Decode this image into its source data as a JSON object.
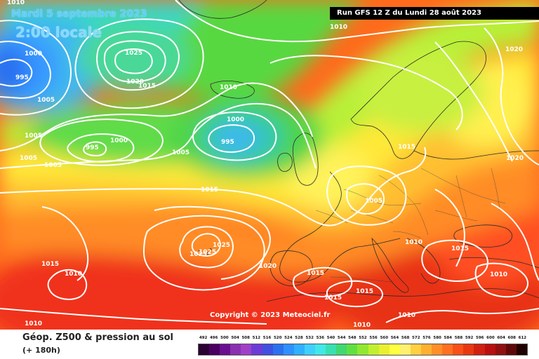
{
  "header": {
    "date": "Mardi 5 septembre 2023",
    "local_time": "2:00 locale",
    "run": "Run GFS 12 Z du Lundi 28 août 2023"
  },
  "copyright": "Copyright © 2023 Meteociel.fr",
  "legend": {
    "parameter": "Géop. Z500 & pression au sol",
    "lead_time": "(+ 180h)",
    "ticks": [
      "492",
      "496",
      "500",
      "504",
      "508",
      "512",
      "516",
      "520",
      "524",
      "528",
      "532",
      "536",
      "540",
      "544",
      "548",
      "552",
      "556",
      "560",
      "564",
      "568",
      "572",
      "576",
      "580",
      "584",
      "588",
      "592",
      "596",
      "600",
      "604",
      "608",
      "612"
    ],
    "colors": [
      "#2b0032",
      "#4a0060",
      "#6a1090",
      "#8a30b0",
      "#a040c8",
      "#6c3cd8",
      "#4050e0",
      "#2c70f0",
      "#3090ff",
      "#30b0ff",
      "#40d0ff",
      "#40e8e8",
      "#38e0b0",
      "#40d870",
      "#60e040",
      "#90e830",
      "#c0f030",
      "#e8f030",
      "#ffff40",
      "#fff070",
      "#ffd040",
      "#ffb030",
      "#ff9028",
      "#ff7020",
      "#f85018",
      "#e83810",
      "#d02010",
      "#b81010",
      "#901010",
      "#600808",
      "#200000"
    ]
  },
  "map": {
    "isobar_labels": [
      {
        "text": "1010"
      },
      {
        "text": "1010"
      },
      {
        "text": "1020"
      },
      {
        "text": "1000"
      },
      {
        "text": "995"
      },
      {
        "text": "1025"
      },
      {
        "text": "1020"
      },
      {
        "text": "1015"
      },
      {
        "text": "1005"
      },
      {
        "text": "1010"
      },
      {
        "text": "1000"
      },
      {
        "text": "995"
      },
      {
        "text": "1000"
      },
      {
        "text": "995"
      },
      {
        "text": "1005"
      },
      {
        "text": "1005"
      },
      {
        "text": "1005"
      },
      {
        "text": "1005"
      },
      {
        "text": "1015"
      },
      {
        "text": "1015"
      },
      {
        "text": "1020"
      },
      {
        "text": "1005"
      },
      {
        "text": "1010"
      },
      {
        "text": "1015"
      },
      {
        "text": "1025"
      },
      {
        "text": "1025"
      },
      {
        "text": "1025"
      },
      {
        "text": "1015"
      },
      {
        "text": "1010"
      },
      {
        "text": "1020"
      },
      {
        "text": "1015"
      },
      {
        "text": "1015"
      },
      {
        "text": "1015"
      },
      {
        "text": "1010"
      },
      {
        "text": "1010"
      },
      {
        "text": "1010"
      },
      {
        "text": "1010"
      }
    ]
  }
}
